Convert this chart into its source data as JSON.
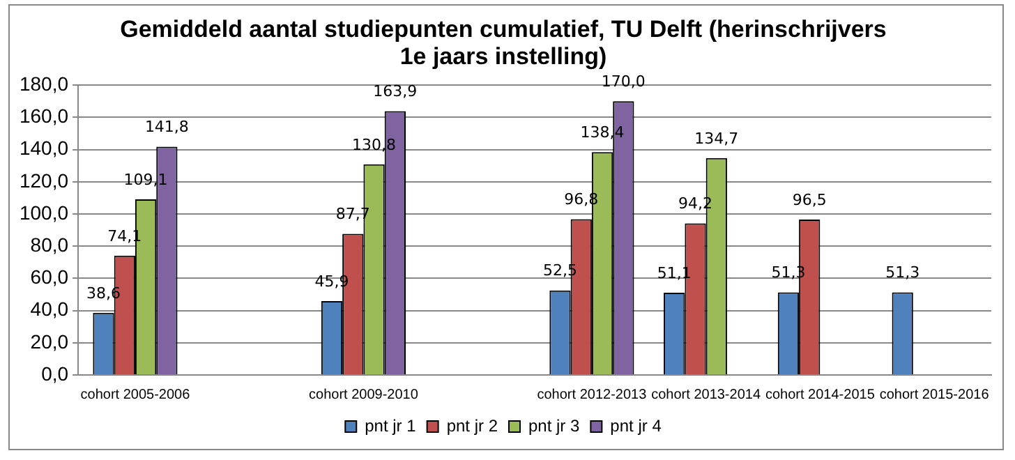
{
  "chart_data": {
    "type": "bar",
    "title": "Gemiddeld aantal studiepunten cumulatief, TU Delft (herinschrijvers\n1e jaars instelling)",
    "categories": [
      "cohort 2005-2006",
      null,
      "cohort 2009-2010",
      null,
      "cohort 2012-2013",
      "cohort 2013-2014",
      "cohort 2014-2015",
      "cohort 2015-2016"
    ],
    "series": [
      {
        "name": "pnt jr 1",
        "color": "#4f81bd",
        "values": [
          38.6,
          null,
          45.9,
          null,
          52.5,
          51.1,
          51.3,
          51.3
        ],
        "value_labels": [
          "38,6",
          null,
          "45,9",
          null,
          "52,5",
          "51,1",
          "51,3",
          "51,3"
        ]
      },
      {
        "name": "pnt jr 2",
        "color": "#c0504d",
        "values": [
          74.1,
          null,
          87.7,
          null,
          96.8,
          94.2,
          96.5,
          null
        ],
        "value_labels": [
          "74,1",
          null,
          "87,7",
          null,
          "96,8",
          "94,2",
          "96,5",
          null
        ]
      },
      {
        "name": "pnt jr 3",
        "color": "#9bbb59",
        "values": [
          109.1,
          null,
          130.8,
          null,
          138.4,
          134.7,
          null,
          null
        ],
        "value_labels": [
          "109,1",
          null,
          "130,8",
          null,
          "138,4",
          "134,7",
          null,
          null
        ]
      },
      {
        "name": "pnt jr 4",
        "color": "#8064a2",
        "values": [
          141.8,
          null,
          163.9,
          null,
          170.0,
          null,
          null,
          null
        ],
        "value_labels": [
          "141,8",
          null,
          "163,9",
          null,
          "170,0",
          null,
          null,
          null
        ]
      }
    ],
    "ylim": [
      0,
      180
    ],
    "yticks": [
      {
        "value": 0,
        "label": "0,0"
      },
      {
        "value": 20,
        "label": "20,0"
      },
      {
        "value": 40,
        "label": "40,0"
      },
      {
        "value": 60,
        "label": "60,0"
      },
      {
        "value": 80,
        "label": "80,0"
      },
      {
        "value": 100,
        "label": "100,0"
      },
      {
        "value": 120,
        "label": "120,0"
      },
      {
        "value": 140,
        "label": "140,0"
      },
      {
        "value": 160,
        "label": "160,0"
      },
      {
        "value": 180,
        "label": "180,0"
      }
    ],
    "grid": "y",
    "legend": "bottom"
  }
}
